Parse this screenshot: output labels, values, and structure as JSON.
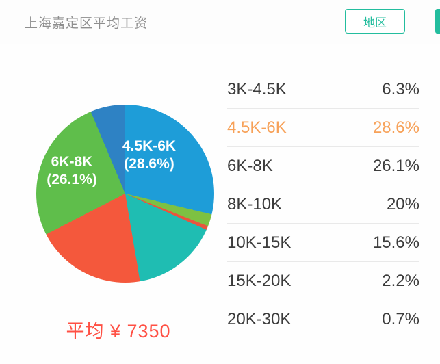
{
  "header": {
    "title": "上海嘉定区平均工资",
    "region_button": "地区"
  },
  "chart_data": {
    "type": "pie",
    "title": "上海嘉定区平均工资",
    "unit": "%",
    "direction": "clockwise",
    "start_angle_deg": 0,
    "series": [
      {
        "label": "4.5K-6K",
        "value": 28.6,
        "color": "#1E9DD8"
      },
      {
        "label": "15K-20K",
        "value": 2.2,
        "color": "#7DC142"
      },
      {
        "label": "20K-30K",
        "value": 0.7,
        "color": "#E8553E"
      },
      {
        "label": "10K-15K",
        "value": 15.6,
        "color": "#1FBDB2"
      },
      {
        "label": "8K-10K",
        "value": 20,
        "color": "#F4583C"
      },
      {
        "label": "6K-8K",
        "value": 26.1,
        "color": "#5FBE4B"
      },
      {
        "label": "3K-4.5K",
        "value": 6.3,
        "color": "#2E82C4"
      }
    ],
    "slice_callouts": [
      {
        "line1": "4.5K-6K",
        "line2": "(28.6%)"
      },
      {
        "line1": "6K-8K",
        "line2": "(26.1%)"
      }
    ],
    "average_label": "平均 ¥ 7350"
  },
  "table": {
    "rows": [
      {
        "range": "3K-4.5K",
        "percent": "6.3%",
        "highlighted": false
      },
      {
        "range": "4.5K-6K",
        "percent": "28.6%",
        "highlighted": true
      },
      {
        "range": "6K-8K",
        "percent": "26.1%",
        "highlighted": false
      },
      {
        "range": "8K-10K",
        "percent": "20%",
        "highlighted": false
      },
      {
        "range": "10K-15K",
        "percent": "15.6%",
        "highlighted": false
      },
      {
        "range": "15K-20K",
        "percent": "2.2%",
        "highlighted": false
      },
      {
        "range": "20K-30K",
        "percent": "0.7%",
        "highlighted": false
      }
    ]
  },
  "colors": {
    "accent_teal": "#23BD9E",
    "highlight_orange": "#F7A158",
    "average_red": "#FF5044",
    "title_gray": "#8E8E8E",
    "text_dark": "#3C3C3C",
    "divider": "#E9E9E9"
  }
}
